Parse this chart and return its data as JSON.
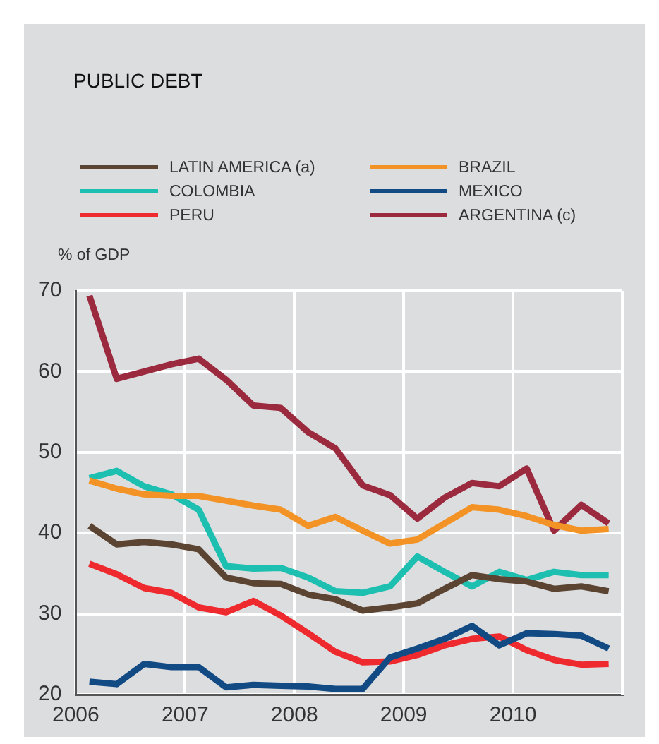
{
  "chart_data": {
    "type": "line",
    "title": "PUBLIC DEBT",
    "ylabel": "% of GDP",
    "x": [
      2006.125,
      2006.375,
      2006.625,
      2006.875,
      2007.125,
      2007.375,
      2007.625,
      2007.875,
      2008.125,
      2008.375,
      2008.625,
      2008.875,
      2009.125,
      2009.375,
      2009.625,
      2009.875,
      2010.125,
      2010.375,
      2010.625,
      2010.875
    ],
    "series": [
      {
        "name": "LATIN AMERICA (a)",
        "color": "#5c4433",
        "values": [
          40.9,
          38.6,
          38.9,
          38.6,
          38,
          34.5,
          33.8,
          33.7,
          32.4,
          31.8,
          30.4,
          30.8,
          31.3,
          33.1,
          34.8,
          34.3,
          34,
          33.1,
          33.4,
          32.8
        ]
      },
      {
        "name": "BRAZIL",
        "color": "#f39325",
        "values": [
          46.5,
          45.5,
          44.8,
          44.6,
          44.6,
          44,
          43.4,
          42.9,
          40.9,
          42,
          40.3,
          38.7,
          39.2,
          41.2,
          43.2,
          42.9,
          42.1,
          41,
          40.3,
          40.5
        ]
      },
      {
        "name": "COLOMBIA",
        "color": "#1dbfb0",
        "values": [
          46.8,
          47.7,
          45.8,
          44.8,
          42.9,
          35.9,
          35.6,
          35.7,
          34.5,
          32.8,
          32.6,
          33.4,
          37.1,
          35.2,
          33.4,
          35.2,
          34.2,
          35.2,
          34.8,
          34.8
        ]
      },
      {
        "name": "MEXICO",
        "color": "#124a84",
        "values": [
          21.6,
          21.3,
          23.8,
          23.4,
          23.4,
          20.9,
          21.2,
          21.1,
          21,
          20.7,
          20.7,
          24.6,
          25.7,
          26.9,
          28.5,
          26.1,
          27.6,
          27.5,
          27.3,
          25.7
        ]
      },
      {
        "name": "PERU",
        "color": "#ee2a2f",
        "values": [
          36.2,
          34.9,
          33.2,
          32.6,
          30.8,
          30.2,
          31.6,
          29.8,
          27.6,
          25.3,
          24,
          24.1,
          24.9,
          26.1,
          26.9,
          27.2,
          25.5,
          24.3,
          23.7,
          23.8
        ]
      },
      {
        "name": "ARGENTINA (c)",
        "color": "#9b2a3f",
        "values": [
          69.4,
          59.1,
          60,
          60.9,
          61.6,
          59,
          55.8,
          55.5,
          52.5,
          50.5,
          45.9,
          44.7,
          41.8,
          44.4,
          46.2,
          45.8,
          48,
          40.3,
          43.5,
          41.2
        ]
      }
    ],
    "xlim": [
      2006,
      2011
    ],
    "xticks": [
      2006,
      2007,
      2008,
      2009,
      2010
    ],
    "ylim": [
      20,
      70
    ],
    "yticks": [
      20,
      30,
      40,
      50,
      60,
      70
    ],
    "grid": true,
    "legend": "top",
    "marker": "none",
    "line_style": "solid"
  }
}
